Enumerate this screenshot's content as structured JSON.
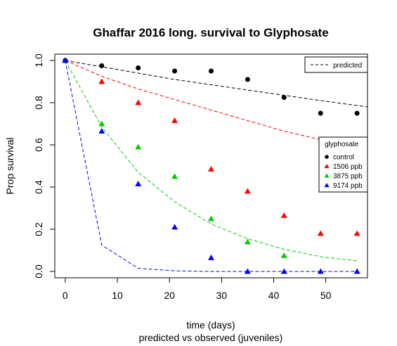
{
  "chart_data": {
    "type": "scatter",
    "title": "Ghaffar 2016 long. survival to Glyphosate",
    "xlabel": "time (days)",
    "xlabel2": "predicted vs observed (juveniles)",
    "ylabel": "Prop survival",
    "xlim": [
      -2,
      58
    ],
    "ylim": [
      -0.03,
      1.03
    ],
    "xticks": [
      0,
      10,
      20,
      30,
      40,
      50
    ],
    "yticks": [
      0.0,
      0.2,
      0.4,
      0.6,
      0.8,
      1.0
    ],
    "xtick_labels": [
      "0",
      "10",
      "20",
      "30",
      "40",
      "50"
    ],
    "ytick_labels": [
      "0.0",
      "0.2",
      "0.4",
      "0.6",
      "0.8",
      "1.0"
    ],
    "legend_predicted": {
      "label": "predicted",
      "position": "top-right"
    },
    "legend": {
      "title": "glyphosate",
      "position": "right"
    },
    "series": [
      {
        "name": "control",
        "color": "#000000",
        "marker": "circle",
        "x": [
          0,
          7,
          14,
          21,
          28,
          35,
          42,
          49,
          56
        ],
        "y": [
          1.0,
          0.975,
          0.965,
          0.95,
          0.95,
          0.91,
          0.825,
          0.75,
          0.75
        ],
        "predicted_x": [
          0,
          7,
          14,
          21,
          28,
          35,
          42,
          49,
          58
        ],
        "predicted_y": [
          1.0,
          0.97,
          0.94,
          0.91,
          0.885,
          0.86,
          0.835,
          0.81,
          0.78
        ]
      },
      {
        "name": "1506 ppb",
        "color": "#ff0000",
        "marker": "triangle",
        "x": [
          0,
          7,
          14,
          21,
          28,
          35,
          42,
          49,
          56
        ],
        "y": [
          1.0,
          0.9,
          0.8,
          0.715,
          0.485,
          0.38,
          0.265,
          0.18,
          0.18
        ],
        "predicted_x": [
          0,
          7,
          14,
          21,
          28,
          35,
          42,
          49,
          56
        ],
        "predicted_y": [
          1.0,
          0.925,
          0.865,
          0.815,
          0.765,
          0.715,
          0.665,
          0.625,
          0.59
        ]
      },
      {
        "name": "3875 ppb",
        "color": "#00cc00",
        "marker": "triangle",
        "x": [
          0,
          7,
          14,
          21,
          28,
          35,
          42
        ],
        "y": [
          1.0,
          0.7,
          0.59,
          0.45,
          0.25,
          0.14,
          0.075
        ],
        "predicted_x": [
          0,
          7,
          14,
          21,
          28,
          35,
          42,
          49,
          56
        ],
        "predicted_y": [
          1.0,
          0.685,
          0.47,
          0.33,
          0.225,
          0.155,
          0.105,
          0.07,
          0.05
        ]
      },
      {
        "name": "9174 ppb",
        "color": "#0000ff",
        "marker": "triangle",
        "x": [
          0,
          7,
          14,
          21,
          28,
          35,
          42,
          49,
          56
        ],
        "y": [
          1.0,
          0.665,
          0.415,
          0.21,
          0.065,
          0.0,
          0.0,
          0.0,
          0.0
        ],
        "predicted_x": [
          0,
          7,
          14,
          21,
          28,
          35,
          42,
          49,
          56
        ],
        "predicted_y": [
          1.0,
          0.125,
          0.015,
          0.003,
          0.0,
          0.0,
          0.0,
          0.0,
          0.0
        ]
      }
    ]
  }
}
